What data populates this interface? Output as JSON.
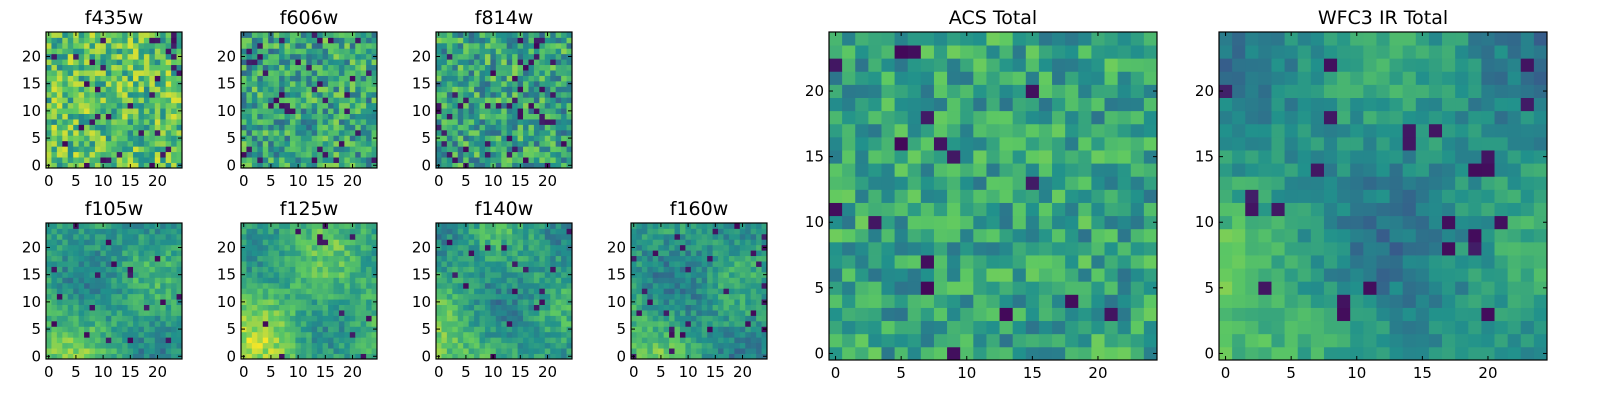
{
  "figure": {
    "colormap": [
      "#440154",
      "#3b528b",
      "#21918c",
      "#5ec962",
      "#fde725"
    ]
  },
  "chart_data": [
    {
      "type": "heatmap",
      "title": "f435w",
      "grid_size": 25,
      "xlim": [
        0,
        24
      ],
      "ylim": [
        0,
        24
      ],
      "xticks": [
        0,
        5,
        10,
        15,
        20
      ],
      "yticks": [
        0,
        5,
        10,
        15,
        20
      ],
      "pattern": "noise",
      "mean_level": 0.7,
      "noise": 0.25,
      "dark_fraction": 0.05
    },
    {
      "type": "heatmap",
      "title": "f606w",
      "grid_size": 25,
      "xlim": [
        0,
        24
      ],
      "ylim": [
        0,
        24
      ],
      "xticks": [
        0,
        5,
        10,
        15,
        20
      ],
      "yticks": [
        0,
        5,
        10,
        15,
        20
      ],
      "pattern": "noise",
      "mean_level": 0.58,
      "noise": 0.25,
      "dark_fraction": 0.06
    },
    {
      "type": "heatmap",
      "title": "f814w",
      "grid_size": 25,
      "xlim": [
        0,
        24
      ],
      "ylim": [
        0,
        24
      ],
      "xticks": [
        0,
        5,
        10,
        15,
        20
      ],
      "yticks": [
        0,
        5,
        10,
        15,
        20
      ],
      "pattern": "noise",
      "mean_level": 0.58,
      "noise": 0.25,
      "dark_fraction": 0.06
    },
    {
      "type": "heatmap",
      "title": "f105w",
      "grid_size": 25,
      "xlim": [
        0,
        24
      ],
      "ylim": [
        0,
        24
      ],
      "xticks": [
        0,
        5,
        10,
        15,
        20
      ],
      "yticks": [
        0,
        5,
        10,
        15,
        20
      ],
      "pattern": "smooth",
      "mean_level": 0.55,
      "noise": 0.12,
      "dark_fraction": 0.03
    },
    {
      "type": "heatmap",
      "title": "f125w",
      "grid_size": 25,
      "xlim": [
        0,
        24
      ],
      "ylim": [
        0,
        24
      ],
      "xticks": [
        0,
        5,
        10,
        15,
        20
      ],
      "yticks": [
        0,
        5,
        10,
        15,
        20
      ],
      "pattern": "smooth",
      "mean_level": 0.62,
      "noise": 0.12,
      "dark_fraction": 0.03
    },
    {
      "type": "heatmap",
      "title": "f140w",
      "grid_size": 25,
      "xlim": [
        0,
        24
      ],
      "ylim": [
        0,
        24
      ],
      "xticks": [
        0,
        5,
        10,
        15,
        20
      ],
      "yticks": [
        0,
        5,
        10,
        15,
        20
      ],
      "pattern": "smooth",
      "mean_level": 0.55,
      "noise": 0.12,
      "dark_fraction": 0.03
    },
    {
      "type": "heatmap",
      "title": "f160w",
      "grid_size": 25,
      "xlim": [
        0,
        24
      ],
      "ylim": [
        0,
        24
      ],
      "xticks": [
        0,
        5,
        10,
        15,
        20
      ],
      "yticks": [
        0,
        5,
        10,
        15,
        20
      ],
      "pattern": "smooth",
      "mean_level": 0.52,
      "noise": 0.12,
      "dark_fraction": 0.04
    },
    {
      "type": "heatmap",
      "title": "ACS Total",
      "grid_size": 25,
      "xlim": [
        0,
        24
      ],
      "ylim": [
        0,
        24
      ],
      "xticks": [
        0,
        5,
        10,
        15,
        20
      ],
      "yticks": [
        0,
        5,
        10,
        15,
        20
      ],
      "pattern": "noise",
      "mean_level": 0.58,
      "noise": 0.2,
      "dark_fraction": 0.03
    },
    {
      "type": "heatmap",
      "title": "WFC3 IR Total",
      "grid_size": 25,
      "xlim": [
        0,
        24
      ],
      "ylim": [
        0,
        24
      ],
      "xticks": [
        0,
        5,
        10,
        15,
        20
      ],
      "yticks": [
        0,
        5,
        10,
        15,
        20
      ],
      "pattern": "smooth",
      "mean_level": 0.5,
      "noise": 0.1,
      "dark_fraction": 0.03
    }
  ]
}
